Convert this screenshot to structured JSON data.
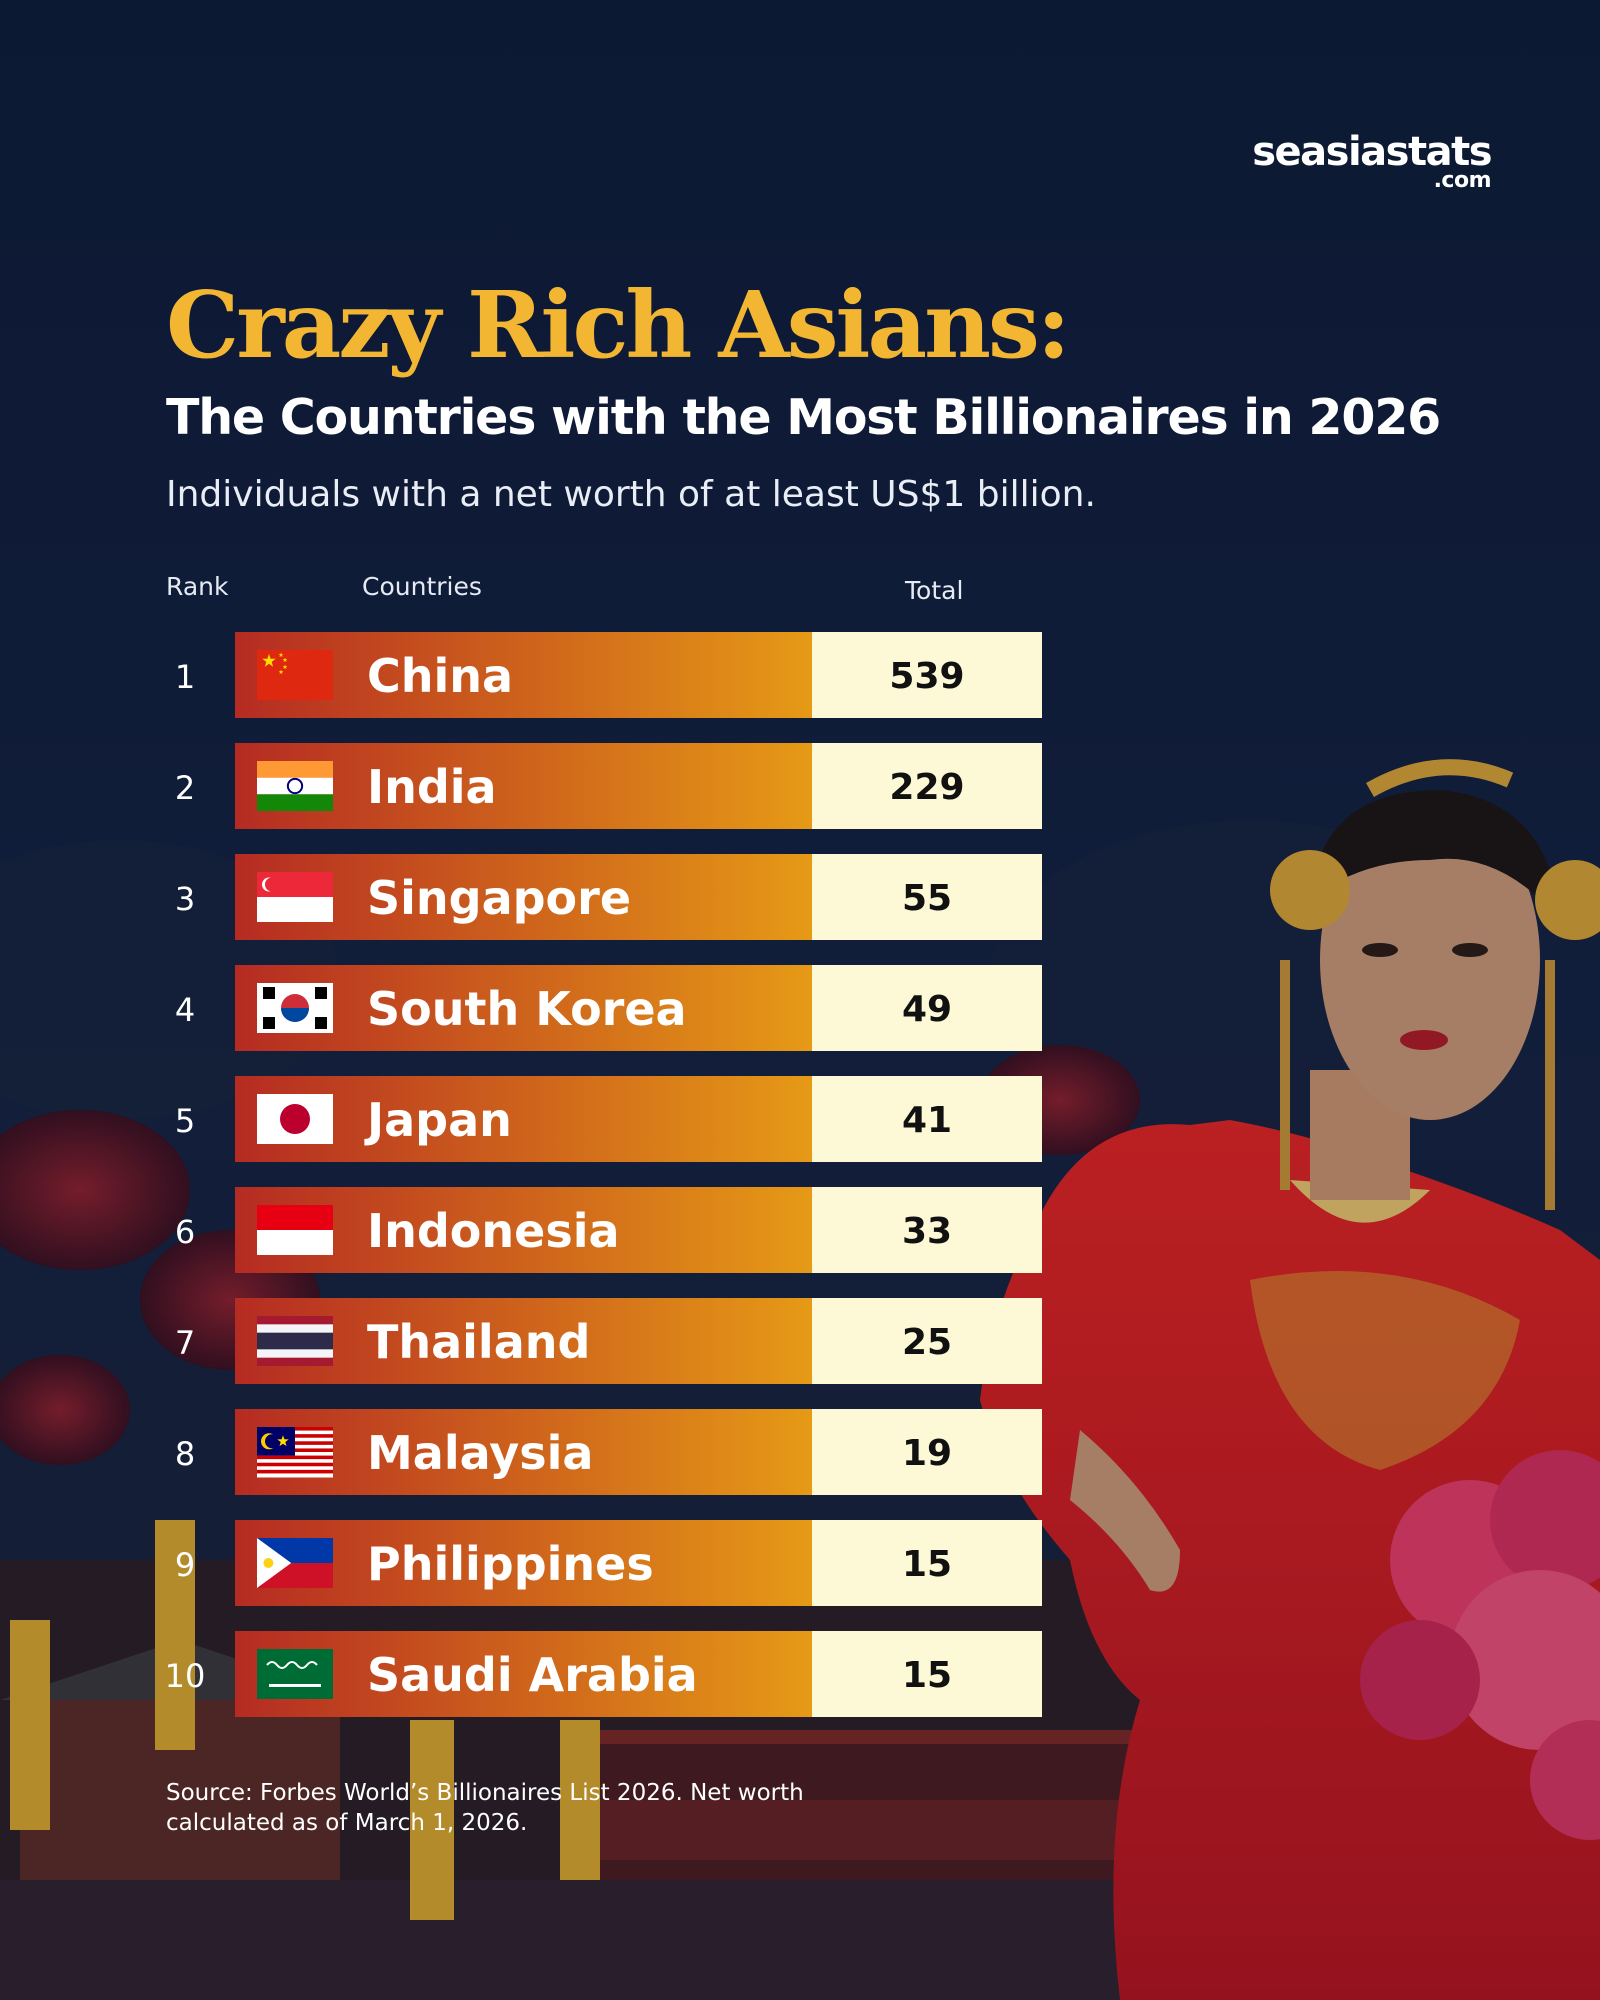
{
  "brand": {
    "name": "seasiastats",
    "suffix": ".com"
  },
  "title": "Crazy Rich Asians:",
  "subtitle": "The Countries with the Most Billionaires in 2026",
  "description": "Individuals with a net worth of at least US$1 billion.",
  "columns": {
    "rank": "Rank",
    "countries": "Countries",
    "total": "Total"
  },
  "source": "Source: Forbes World’s Billionaires List 2026. Net worth calculated as of March 1, 2026.",
  "colors": {
    "background": "#0f1b35",
    "title_gold": "#f2b633",
    "bar_start": "#b52b22",
    "bar_end": "#e69a16",
    "total_cell": "#fdf8d6"
  },
  "chart_data": {
    "type": "table",
    "ranks": [
      "1",
      "2",
      "3",
      "4",
      "5",
      "6",
      "7",
      "8",
      "9",
      "10"
    ],
    "categories": [
      "China",
      "India",
      "Singapore",
      "South Korea",
      "Japan",
      "Indonesia",
      "Thailand",
      "Malaysia",
      "Philippines",
      "Saudi Arabia"
    ],
    "values": [
      539,
      229,
      55,
      49,
      41,
      33,
      25,
      19,
      15,
      15
    ],
    "flags": [
      "china-flag",
      "india-flag",
      "singapore-flag",
      "south-korea-flag",
      "japan-flag",
      "indonesia-flag",
      "thailand-flag",
      "malaysia-flag",
      "philippines-flag",
      "saudi-arabia-flag"
    ]
  }
}
